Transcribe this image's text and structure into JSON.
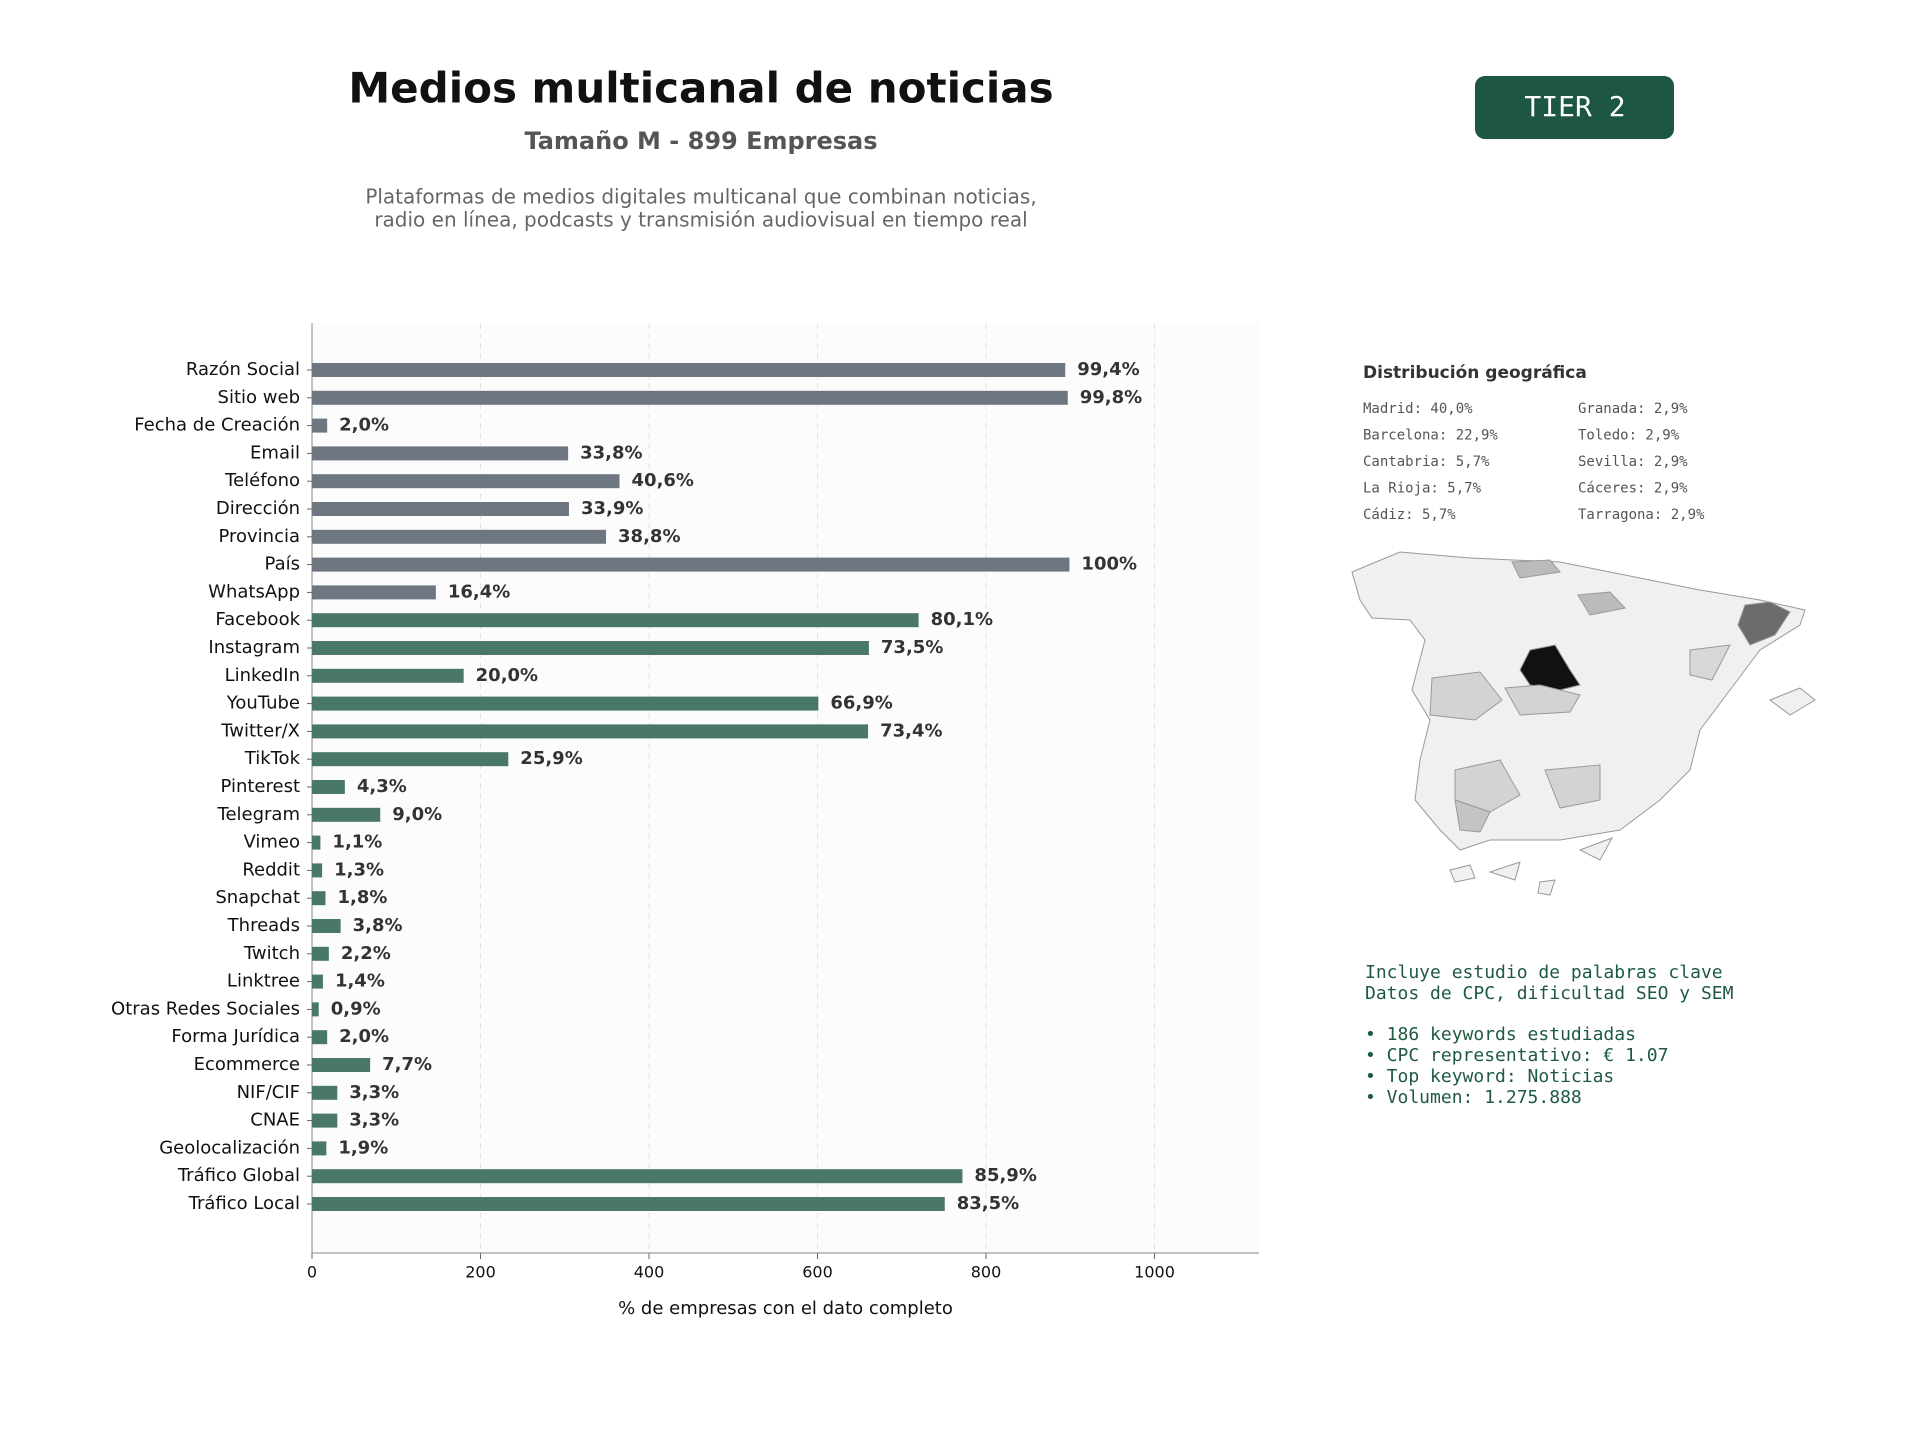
{
  "header": {
    "title": "Medios multicanal de noticias",
    "subtitle": "Tamaño M - 899 Empresas",
    "description": [
      "Plataformas de medios digitales multicanal que combinan noticias,",
      "radio en línea, podcasts y transmisión audiovisual en tiempo real"
    ]
  },
  "badge": "TIER 2",
  "chart_data": {
    "type": "bar",
    "orientation": "horizontal",
    "categories": [
      "Razón Social",
      "Sitio web",
      "Fecha de Creación",
      "Email",
      "Teléfono",
      "Dirección",
      "Provincia",
      "País",
      "WhatsApp",
      "Facebook",
      "Instagram",
      "LinkedIn",
      "YouTube",
      "Twitter/X",
      "TikTok",
      "Pinterest",
      "Telegram",
      "Vimeo",
      "Reddit",
      "Snapchat",
      "Threads",
      "Twitch",
      "Linktree",
      "Otras Redes Sociales",
      "Forma Jurídica",
      "Ecommerce",
      "NIF/CIF",
      "CNAE",
      "Geolocalización",
      "Tráfico Global",
      "Tráfico Local"
    ],
    "values": [
      894,
      897,
      18,
      304,
      365,
      305,
      349,
      899,
      147,
      720,
      661,
      180,
      601,
      660,
      233,
      39,
      81,
      10,
      12,
      16,
      34,
      20,
      13,
      8,
      18,
      69,
      30,
      30,
      17,
      772,
      751
    ],
    "value_labels": [
      "99,4%",
      "99,8%",
      "2,0%",
      "33,8%",
      "40,6%",
      "33,9%",
      "38,8%",
      "100%",
      "16,4%",
      "80,1%",
      "73,5%",
      "20,0%",
      "66,9%",
      "73,4%",
      "25,9%",
      "4,3%",
      "9,0%",
      "1,1%",
      "1,3%",
      "1,8%",
      "3,8%",
      "2,2%",
      "1,4%",
      "0,9%",
      "2,0%",
      "7,7%",
      "3,3%",
      "3,3%",
      "1,9%",
      "85,9%",
      "83,5%"
    ],
    "colors": [
      "#6e7781",
      "#6e7781",
      "#6e7781",
      "#6e7781",
      "#6e7781",
      "#6e7781",
      "#6e7781",
      "#6e7781",
      "#6e7781",
      "#4a7866",
      "#4a7866",
      "#4a7866",
      "#4a7866",
      "#4a7866",
      "#4a7866",
      "#4a7866",
      "#4a7866",
      "#4a7866",
      "#4a7866",
      "#4a7866",
      "#4a7866",
      "#4a7866",
      "#4a7866",
      "#4a7866",
      "#4a7866",
      "#4a7866",
      "#4a7866",
      "#4a7866",
      "#4a7866",
      "#4a7866",
      "#4a7866"
    ],
    "xlim": [
      0,
      1124
    ],
    "xticks": [
      0,
      200,
      400,
      600,
      800,
      1000
    ],
    "grid": true,
    "xlabel": "% de empresas con el dato completo"
  },
  "geo": {
    "title": "Distribución geográfica",
    "items": [
      "Madrid: 40,0%",
      "Barcelona: 22,9%",
      "Cantabria: 5,7%",
      "La Rioja: 5,7%",
      "Cádiz: 5,7%",
      "Granada: 2,9%",
      "Toledo: 2,9%",
      "Sevilla: 2,9%",
      "Cáceres: 2,9%",
      "Tarragona: 2,9%"
    ]
  },
  "keywords": {
    "intro": [
      "Incluye estudio de palabras clave",
      "Datos de CPC, dificultad SEO y SEM"
    ],
    "bullets": [
      "• 186 keywords estudiadas",
      "• CPC representativo: € 1.07",
      "• Top keyword: Noticias",
      "• Volumen: 1.275.888"
    ]
  }
}
